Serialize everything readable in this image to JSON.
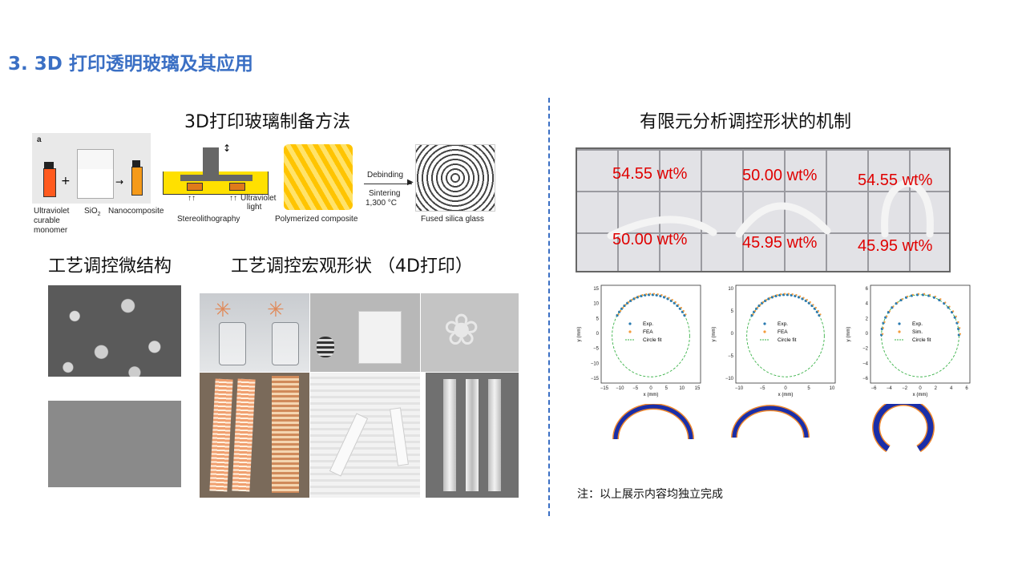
{
  "title": "3. 3D 打印透明玻璃及其应用",
  "left": {
    "heading_method": "3D打印玻璃制备方法",
    "heading_micro": "工艺调控微结构",
    "heading_macro": "工艺调控宏观形状 （4D打印）",
    "schematic": {
      "panel_letter": "a",
      "labels": {
        "uv_monomer_1": "Ultraviolet",
        "uv_monomer_2": "curable",
        "uv_monomer_3": "monomer",
        "sio2": "SiO",
        "sio2_sub": "2",
        "nanocomposite": "Nanocomposite",
        "uv_light_1": "Ultraviolet",
        "uv_light_2": "light",
        "stereolithography": "Stereolithography",
        "polymerized": "Polymerized composite",
        "debinding": "Debinding",
        "sintering": "Sintering",
        "temp": "1,300 °C",
        "fused": "Fused silica glass"
      }
    }
  },
  "right": {
    "heading_fea": "有限元分析调控形状的机制",
    "photo_labels": {
      "top_1": "54.55 wt%",
      "top_2": "50.00 wt%",
      "top_3": "54.55 wt%",
      "bot_1": "50.00 wt%",
      "bot_2": "45.95 wt%",
      "bot_3": "45.95 wt%"
    },
    "plots": [
      {
        "legend": [
          "Exp.",
          "FEA",
          "Circle fit"
        ],
        "xlabel": "x (mm)",
        "ylabel": "y (mm)",
        "yticks": [
          "15",
          "10",
          "5",
          "0",
          "−5",
          "−10",
          "−15"
        ],
        "xticks": [
          "−15",
          "−10",
          "−5",
          "0",
          "5",
          "10",
          "15"
        ]
      },
      {
        "legend": [
          "Exp.",
          "FEA",
          "Circle fit"
        ],
        "xlabel": "x (mm)",
        "ylabel": "y (mm)",
        "yticks": [
          "10",
          "5",
          "0",
          "−5",
          "−10"
        ],
        "xticks": [
          "−10",
          "−5",
          "0",
          "5",
          "10"
        ]
      },
      {
        "legend": [
          "Exp.",
          "Sim.",
          "Circle fit"
        ],
        "xlabel": "x (mm)",
        "ylabel": "y (mm)",
        "yticks": [
          "6",
          "4",
          "2",
          "0",
          "−2",
          "−4",
          "−6"
        ],
        "xticks": [
          "−6",
          "−4",
          "−2",
          "0",
          "2",
          "4",
          "6"
        ]
      }
    ],
    "note": "注：以上展示内容均独立完成"
  },
  "colors": {
    "title": "#3a6fc4",
    "wt_label": "#e00000",
    "exp": "#2a7ab0",
    "fea": "#f39c3c",
    "circle": "#3cb34a"
  }
}
